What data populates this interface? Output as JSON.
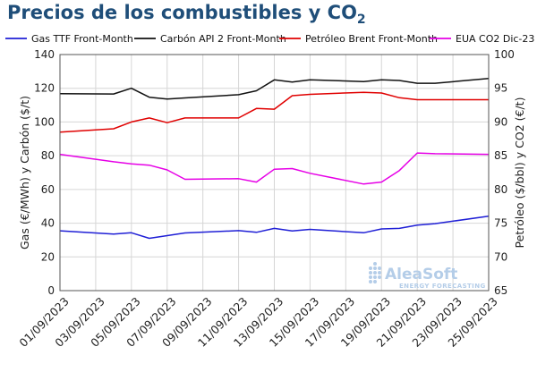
{
  "chart_data": {
    "type": "line",
    "title": {
      "main": "Precios de los combustibles y CO",
      "subscript": "2"
    },
    "xlabel": "",
    "ylabel": "Gas (€/MWh) y Carbón ($/t)",
    "y2label": "Petróleo ($/bbl) y CO2 (€/t)",
    "ylim": [
      0,
      140
    ],
    "y2lim": [
      65,
      100
    ],
    "yticks": [
      "0",
      "20",
      "40",
      "60",
      "80",
      "100",
      "120",
      "140"
    ],
    "y2ticks": [
      "65",
      "70",
      "75",
      "80",
      "85",
      "90",
      "95",
      "100"
    ],
    "grid": true,
    "legend_position": "top",
    "x": [
      "2023-09-01",
      "2023-09-04",
      "2023-09-05",
      "2023-09-06",
      "2023-09-07",
      "2023-09-08",
      "2023-09-11",
      "2023-09-12",
      "2023-09-13",
      "2023-09-14",
      "2023-09-15",
      "2023-09-18",
      "2023-09-19",
      "2023-09-20",
      "2023-09-21",
      "2023-09-22",
      "2023-09-25"
    ],
    "xticks": [
      "01/09/2023",
      "03/09/2023",
      "05/09/2023",
      "07/09/2023",
      "09/09/2023",
      "11/09/2023",
      "13/09/2023",
      "15/09/2023",
      "17/09/2023",
      "19/09/2023",
      "21/09/2023",
      "23/09/2023",
      "25/09/2023"
    ],
    "xtick_dates": [
      "2023-09-01",
      "2023-09-03",
      "2023-09-05",
      "2023-09-07",
      "2023-09-09",
      "2023-09-11",
      "2023-09-13",
      "2023-09-15",
      "2023-09-17",
      "2023-09-19",
      "2023-09-21",
      "2023-09-23",
      "2023-09-25"
    ],
    "series": [
      {
        "name": "Gas TTF Front-Month",
        "axis": "left",
        "color": "#1f1fd6",
        "values": [
          35.5,
          33.5,
          34.3,
          31.0,
          32.6,
          34.2,
          35.6,
          34.6,
          36.9,
          35.4,
          36.3,
          34.3,
          36.6,
          36.9,
          38.8,
          39.7,
          44.1
        ]
      },
      {
        "name": "Carbón API 2 Front-Month",
        "axis": "left",
        "color": "#111111",
        "values": [
          116.8,
          116.6,
          120.0,
          114.7,
          113.6,
          114.3,
          116.2,
          118.5,
          125.0,
          123.7,
          125.0,
          124.0,
          125.0,
          124.6,
          123.0,
          123.0,
          125.8
        ]
      },
      {
        "name": "Petróleo Brent Front-Month",
        "axis": "right",
        "color": "#e00000",
        "values": [
          88.5,
          89.0,
          90.0,
          90.6,
          89.9,
          90.6,
          90.6,
          92.0,
          91.9,
          93.9,
          94.1,
          94.4,
          94.3,
          93.6,
          93.3,
          93.3,
          93.3
        ]
      },
      {
        "name": "EUA CO2 Dic-23",
        "axis": "right",
        "color": "#e600e6",
        "values": [
          85.2,
          84.1,
          83.8,
          83.6,
          82.9,
          81.5,
          81.6,
          81.1,
          83.0,
          83.1,
          82.4,
          80.8,
          81.1,
          82.8,
          85.4,
          85.3,
          85.2
        ]
      }
    ]
  },
  "watermark": {
    "brand": "AleaSoft",
    "tagline": "ENERGY FORECASTING"
  }
}
